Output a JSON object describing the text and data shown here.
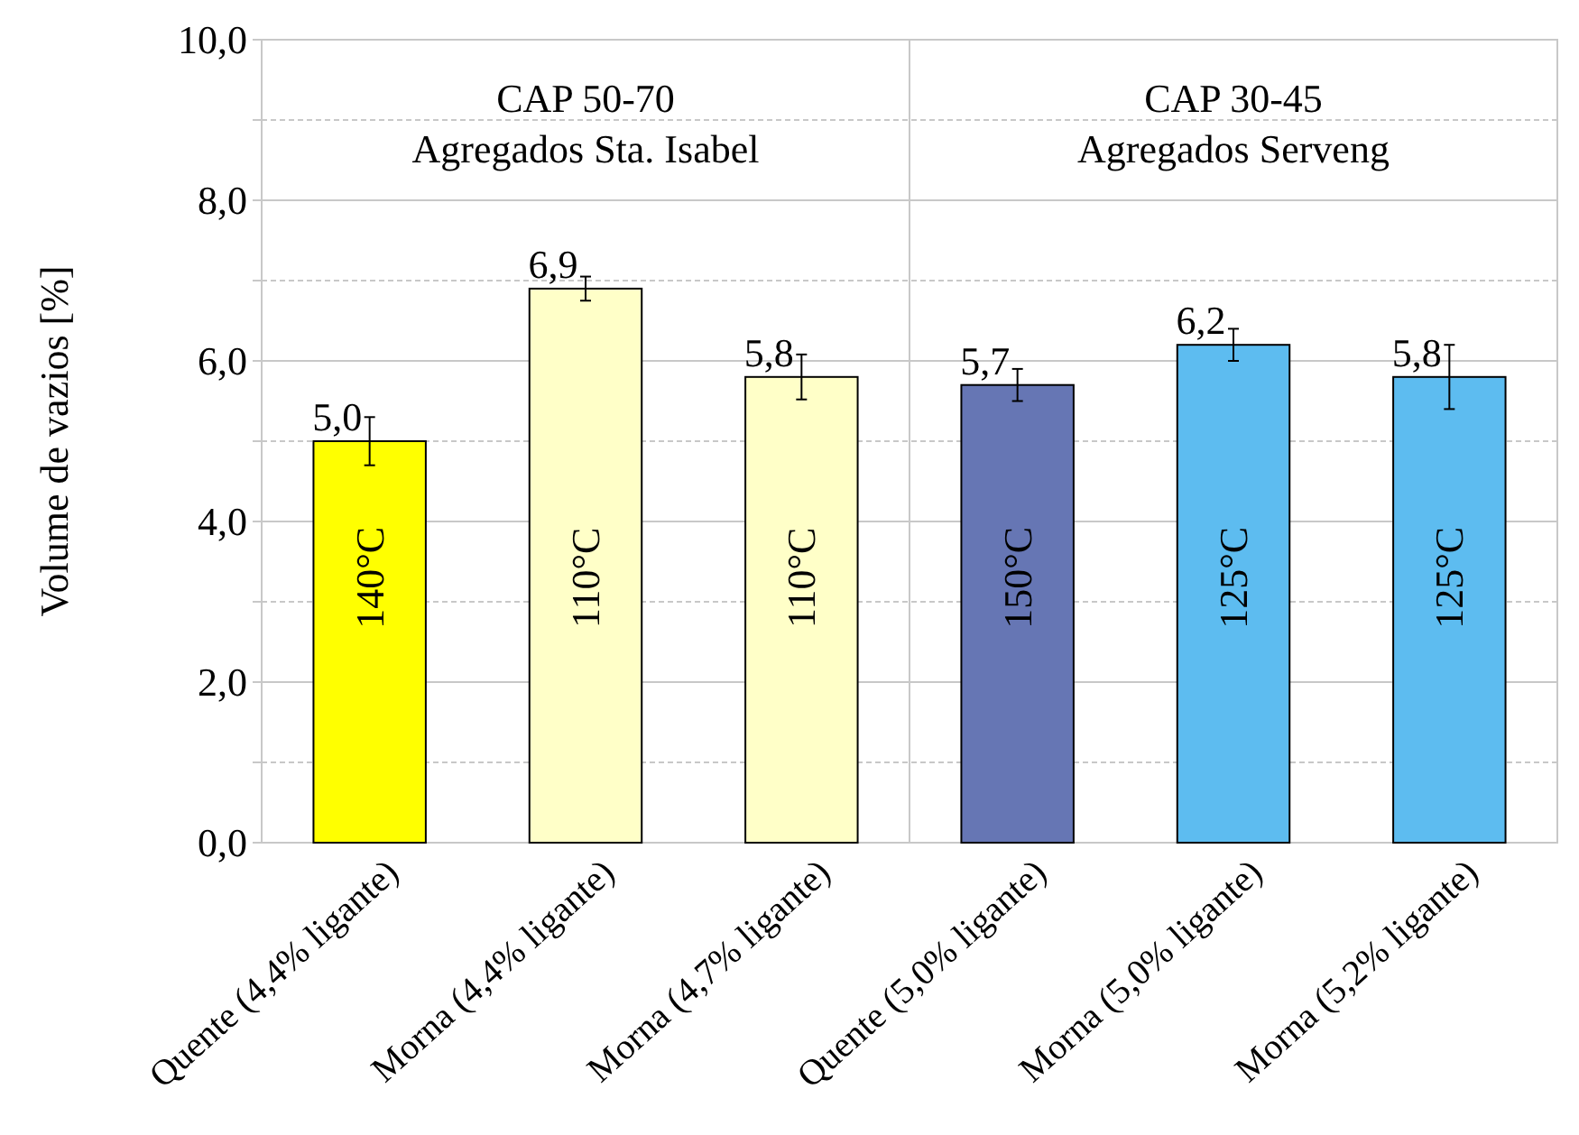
{
  "chart_data": {
    "type": "bar",
    "ylabel": "Volume de vazios [%]",
    "categories": [
      "Quente (4,4% ligante)",
      "Morna (4,4% ligante)",
      "Morna (4,7% ligante)",
      "Quente (5,0% ligante)",
      "Morna (5,0% ligante)",
      "Morna (5,2% ligante)"
    ],
    "values": [
      5.0,
      6.9,
      5.8,
      5.7,
      6.2,
      5.8
    ],
    "colors": [
      "#ffff00",
      "#ffffc8",
      "#ffffc8",
      "#6676b4",
      "#5dbcf0",
      "#5dbcf0"
    ],
    "errors": [
      0.3,
      0.15,
      0.28,
      0.2,
      0.2,
      0.4
    ],
    "value_labels": [
      "5,0",
      "6,9",
      "5,8",
      "5,7",
      "6,2",
      "5,8"
    ],
    "ylim": [
      0,
      10
    ],
    "yticks": [
      {
        "value": 0,
        "label": "0,0"
      },
      {
        "value": 1,
        "label": null
      },
      {
        "value": 2,
        "label": "2,0"
      },
      {
        "value": 3,
        "label": null
      },
      {
        "value": 4,
        "label": "4,0"
      },
      {
        "value": 5,
        "label": null
      },
      {
        "value": 6,
        "label": "6,0"
      },
      {
        "value": 7,
        "label": null
      },
      {
        "value": 8,
        "label": "8,0"
      },
      {
        "value": 9,
        "label": null
      },
      {
        "value": 10,
        "label": "10,0"
      }
    ],
    "grid": "y",
    "annotations": [
      "CAP 50-70\nAgregados Sta. Isabel",
      "CAP 30-45\nAgregados Serveng",
      "140°C",
      "110°C",
      "110°C",
      "150°C",
      "125°C",
      "125°C"
    ]
  }
}
